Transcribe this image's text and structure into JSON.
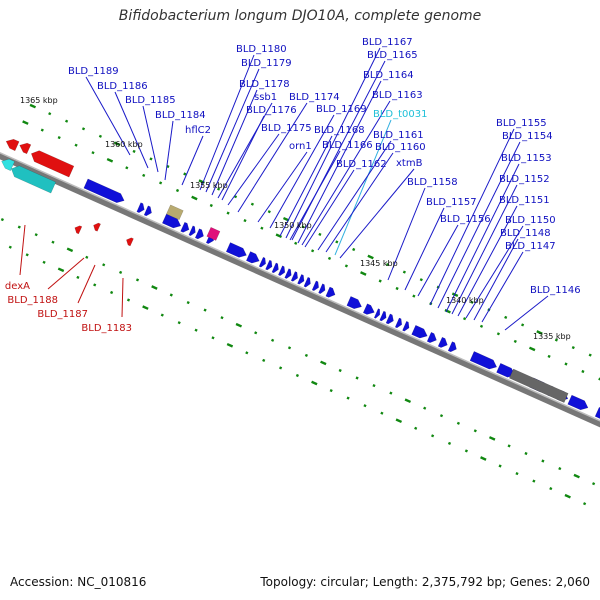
{
  "title": "Bifidobacterium longum DJO10A, complete genome",
  "footer": {
    "accession": "Accession: NC_010816",
    "topology": "Topology: circular; Length: 2,375,792 bp; Genes: 2,060"
  },
  "colors": {
    "forward_gene": "#1010d8",
    "reverse_gene": "#e01010",
    "rrna": "#20c0c0",
    "trna_label": "#20c0d8",
    "pseudogene": "#b8aa70",
    "misc_feature": "#e0107a",
    "gap_feature": "#666666",
    "backbone": "#777777",
    "gene_label": "#1010c0",
    "reverse_label": "#c01010",
    "leader_line": "#1a1ac8",
    "tick_dot": "#118811"
  },
  "ticks": [
    {
      "label": "1365 kbp"
    },
    {
      "label": "1360 kbp"
    },
    {
      "label": "1355 kbp"
    },
    {
      "label": "1350 kbp"
    },
    {
      "label": "1345 kbp"
    },
    {
      "label": "1340 kbp"
    },
    {
      "label": "1335 kbp"
    }
  ],
  "labels": [
    {
      "text": "BLD_1189",
      "strand": "forward"
    },
    {
      "text": "BLD_1186",
      "strand": "forward"
    },
    {
      "text": "BLD_1185",
      "strand": "forward"
    },
    {
      "text": "BLD_1184",
      "strand": "forward"
    },
    {
      "text": "hflC2",
      "strand": "forward"
    },
    {
      "text": "BLD_1180",
      "strand": "forward"
    },
    {
      "text": "BLD_1179",
      "strand": "forward"
    },
    {
      "text": "BLD_1178",
      "strand": "forward"
    },
    {
      "text": "ssb1",
      "strand": "forward"
    },
    {
      "text": "BLD_1176",
      "strand": "forward"
    },
    {
      "text": "BLD_1175",
      "strand": "forward"
    },
    {
      "text": "BLD_1174",
      "strand": "forward"
    },
    {
      "text": "orn1",
      "strand": "forward"
    },
    {
      "text": "BLD_1169",
      "strand": "forward"
    },
    {
      "text": "BLD_1168",
      "strand": "forward"
    },
    {
      "text": "BLD_1166",
      "strand": "forward"
    },
    {
      "text": "BLD_1162",
      "strand": "forward"
    },
    {
      "text": "BLD_1167",
      "strand": "forward"
    },
    {
      "text": "BLD_1165",
      "strand": "forward"
    },
    {
      "text": "BLD_1164",
      "strand": "forward"
    },
    {
      "text": "BLD_1163",
      "strand": "forward"
    },
    {
      "text": "BLD_t0031",
      "strand": "trna"
    },
    {
      "text": "BLD_1161",
      "strand": "forward"
    },
    {
      "text": "BLD_1160",
      "strand": "forward"
    },
    {
      "text": "xtmB",
      "strand": "forward"
    },
    {
      "text": "BLD_1158",
      "strand": "forward"
    },
    {
      "text": "BLD_1157",
      "strand": "forward"
    },
    {
      "text": "BLD_1156",
      "strand": "forward"
    },
    {
      "text": "BLD_1155",
      "strand": "forward"
    },
    {
      "text": "BLD_1154",
      "strand": "forward"
    },
    {
      "text": "BLD_1153",
      "strand": "forward"
    },
    {
      "text": "BLD_1152",
      "strand": "forward"
    },
    {
      "text": "BLD_1151",
      "strand": "forward"
    },
    {
      "text": "BLD_1150",
      "strand": "forward"
    },
    {
      "text": "BLD_1148",
      "strand": "forward"
    },
    {
      "text": "BLD_1147",
      "strand": "forward"
    },
    {
      "text": "BLD_1146",
      "strand": "forward"
    },
    {
      "text": "dexA",
      "strand": "reverse"
    },
    {
      "text": "BLD_1188",
      "strand": "reverse"
    },
    {
      "text": "BLD_1187",
      "strand": "reverse"
    },
    {
      "text": "BLD_1183",
      "strand": "reverse"
    }
  ]
}
